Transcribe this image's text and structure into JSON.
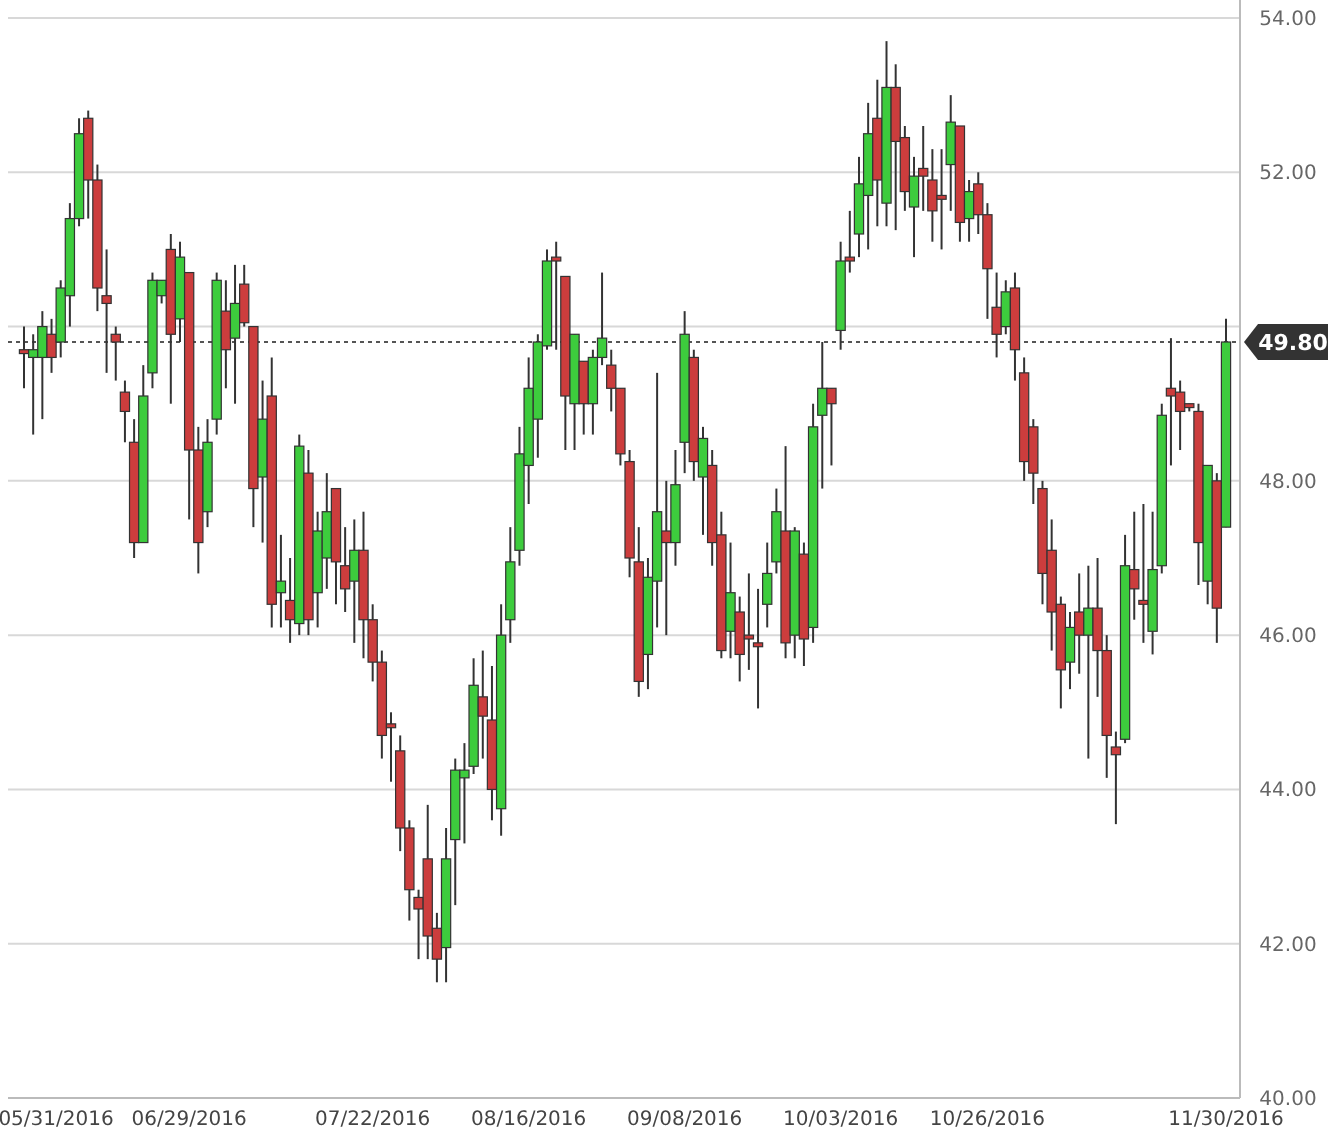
{
  "chart_data": {
    "type": "candlestick",
    "categories": [
      null,
      null,
      null,
      "05/31/2016",
      null,
      null,
      null,
      null,
      null,
      null,
      null,
      null,
      null,
      null,
      null,
      null,
      null,
      null,
      "06/29/2016",
      null,
      null,
      null,
      null,
      null,
      null,
      null,
      null,
      null,
      null,
      null,
      null,
      null,
      null,
      null,
      null,
      null,
      null,
      null,
      "07/22/2016",
      null,
      null,
      null,
      null,
      null,
      null,
      null,
      null,
      null,
      null,
      null,
      null,
      null,
      null,
      null,
      null,
      "08/16/2016",
      null,
      null,
      null,
      null,
      null,
      null,
      null,
      null,
      null,
      null,
      null,
      null,
      null,
      null,
      null,
      null,
      "09/08/2016",
      null,
      null,
      null,
      null,
      null,
      null,
      null,
      null,
      null,
      null,
      null,
      null,
      null,
      null,
      null,
      null,
      "10/03/2016",
      null,
      null,
      null,
      null,
      null,
      null,
      null,
      null,
      null,
      null,
      null,
      null,
      null,
      null,
      null,
      "10/26/2016",
      null,
      null,
      null,
      null,
      null,
      null,
      null,
      null,
      null,
      null,
      null,
      null,
      null,
      null,
      null,
      null,
      null,
      null,
      null,
      null,
      null,
      null,
      null,
      null,
      null,
      "11/30/2016"
    ],
    "ohlc": [
      [
        49.7,
        50.0,
        49.2,
        49.65
      ],
      [
        49.6,
        49.9,
        48.6,
        49.7
      ],
      [
        49.6,
        50.2,
        48.8,
        50.0
      ],
      [
        49.9,
        50.1,
        49.4,
        49.6
      ],
      [
        49.8,
        50.6,
        49.6,
        50.5
      ],
      [
        50.4,
        51.6,
        50.0,
        51.4
      ],
      [
        51.4,
        52.7,
        51.3,
        52.5
      ],
      [
        52.7,
        52.8,
        51.4,
        51.9
      ],
      [
        51.9,
        52.1,
        50.2,
        50.5
      ],
      [
        50.4,
        51.0,
        49.4,
        50.3
      ],
      [
        49.9,
        50.0,
        49.3,
        49.8
      ],
      [
        49.15,
        49.3,
        48.5,
        48.9
      ],
      [
        48.5,
        48.8,
        47.0,
        47.2
      ],
      [
        47.2,
        49.5,
        47.2,
        49.1
      ],
      [
        49.4,
        50.7,
        49.2,
        50.6
      ],
      [
        50.4,
        50.6,
        50.3,
        50.6
      ],
      [
        51.0,
        51.2,
        49.0,
        49.9
      ],
      [
        50.1,
        51.1,
        49.8,
        50.9
      ],
      [
        50.7,
        50.7,
        47.5,
        48.4
      ],
      [
        48.4,
        48.7,
        46.8,
        47.2
      ],
      [
        47.6,
        48.8,
        47.4,
        48.5
      ],
      [
        48.8,
        50.7,
        48.6,
        50.6
      ],
      [
        50.2,
        50.6,
        49.2,
        49.7
      ],
      [
        49.85,
        50.8,
        49.0,
        50.3
      ],
      [
        50.55,
        50.8,
        50.0,
        50.05
      ],
      [
        50.0,
        50.0,
        47.4,
        47.9
      ],
      [
        48.05,
        49.3,
        47.2,
        48.8
      ],
      [
        49.1,
        49.6,
        46.1,
        46.4
      ],
      [
        46.55,
        47.3,
        46.1,
        46.7
      ],
      [
        46.45,
        47.0,
        45.9,
        46.2
      ],
      [
        46.15,
        48.6,
        46.0,
        48.45
      ],
      [
        48.1,
        48.4,
        46.0,
        46.2
      ],
      [
        46.55,
        47.6,
        46.1,
        47.35
      ],
      [
        47.0,
        48.1,
        46.6,
        47.6
      ],
      [
        47.9,
        47.9,
        46.4,
        46.95
      ],
      [
        46.9,
        47.4,
        46.3,
        46.6
      ],
      [
        46.7,
        47.5,
        45.9,
        47.1
      ],
      [
        47.1,
        47.6,
        45.7,
        46.2
      ],
      [
        46.2,
        46.4,
        45.4,
        45.65
      ],
      [
        45.65,
        45.8,
        44.4,
        44.7
      ],
      [
        44.85,
        45.0,
        44.1,
        44.8
      ],
      [
        44.5,
        44.7,
        43.2,
        43.5
      ],
      [
        43.5,
        43.6,
        42.3,
        42.7
      ],
      [
        42.6,
        42.7,
        41.8,
        42.45
      ],
      [
        43.1,
        43.8,
        41.8,
        42.1
      ],
      [
        42.2,
        42.4,
        41.5,
        41.8
      ],
      [
        41.95,
        43.5,
        41.5,
        43.1
      ],
      [
        43.35,
        44.4,
        42.5,
        44.25
      ],
      [
        44.15,
        44.6,
        43.3,
        44.25
      ],
      [
        44.3,
        45.7,
        44.2,
        45.35
      ],
      [
        45.2,
        45.8,
        44.4,
        44.95
      ],
      [
        44.9,
        45.6,
        43.6,
        44.0
      ],
      [
        43.75,
        46.4,
        43.4,
        46.0
      ],
      [
        46.2,
        47.4,
        45.9,
        46.95
      ],
      [
        47.1,
        48.7,
        46.9,
        48.35
      ],
      [
        48.2,
        49.6,
        47.7,
        49.2
      ],
      [
        48.8,
        49.9,
        48.3,
        49.8
      ],
      [
        49.75,
        51.0,
        49.7,
        50.85
      ],
      [
        50.9,
        51.1,
        49.7,
        50.85
      ],
      [
        50.65,
        50.65,
        48.4,
        49.1
      ],
      [
        49.0,
        49.9,
        48.4,
        49.9
      ],
      [
        49.55,
        49.55,
        48.6,
        49.0
      ],
      [
        49.0,
        49.7,
        48.6,
        49.6
      ],
      [
        49.6,
        50.7,
        49.5,
        49.85
      ],
      [
        49.5,
        49.7,
        48.9,
        49.2
      ],
      [
        49.2,
        49.2,
        48.2,
        48.35
      ],
      [
        48.25,
        48.4,
        46.75,
        47.0
      ],
      [
        46.95,
        47.4,
        45.2,
        45.4
      ],
      [
        45.75,
        47.0,
        45.3,
        46.75
      ],
      [
        46.7,
        49.4,
        46.1,
        47.6
      ],
      [
        47.35,
        48.0,
        46.0,
        47.2
      ],
      [
        47.2,
        48.4,
        46.9,
        47.95
      ],
      [
        48.5,
        50.2,
        48.1,
        49.9
      ],
      [
        49.6,
        49.7,
        48.0,
        48.25
      ],
      [
        48.05,
        48.7,
        47.3,
        48.55
      ],
      [
        48.2,
        48.4,
        46.9,
        47.2
      ],
      [
        47.3,
        47.6,
        45.7,
        45.8
      ],
      [
        46.05,
        47.2,
        45.7,
        46.55
      ],
      [
        46.3,
        46.5,
        45.4,
        45.75
      ],
      [
        46.0,
        46.8,
        45.55,
        45.95
      ],
      [
        45.9,
        46.6,
        45.05,
        45.85
      ],
      [
        46.4,
        47.2,
        46.1,
        46.8
      ],
      [
        46.95,
        47.9,
        46.8,
        47.6
      ],
      [
        47.35,
        48.45,
        45.7,
        45.9
      ],
      [
        46.0,
        47.4,
        45.7,
        47.35
      ],
      [
        47.05,
        47.2,
        45.6,
        45.95
      ],
      [
        46.1,
        49.0,
        45.9,
        48.7
      ],
      [
        48.85,
        49.8,
        47.9,
        49.2
      ],
      [
        49.2,
        49.2,
        48.2,
        49.0
      ],
      [
        49.95,
        51.1,
        49.7,
        50.85
      ],
      [
        50.9,
        51.5,
        50.7,
        50.85
      ],
      [
        51.2,
        52.2,
        50.9,
        51.85
      ],
      [
        51.7,
        52.9,
        51.0,
        52.5
      ],
      [
        52.7,
        53.2,
        51.3,
        51.9
      ],
      [
        51.6,
        53.7,
        51.3,
        53.1
      ],
      [
        53.1,
        53.4,
        51.25,
        52.4
      ],
      [
        52.45,
        52.6,
        51.5,
        51.75
      ],
      [
        51.55,
        52.2,
        50.9,
        51.95
      ],
      [
        52.05,
        52.6,
        51.5,
        51.95
      ],
      [
        51.9,
        52.3,
        51.1,
        51.5
      ],
      [
        51.7,
        52.3,
        51.0,
        51.65
      ],
      [
        52.1,
        53.0,
        51.5,
        52.65
      ],
      [
        52.6,
        52.6,
        51.1,
        51.35
      ],
      [
        51.4,
        51.9,
        51.1,
        51.75
      ],
      [
        51.85,
        52.0,
        51.2,
        51.45
      ],
      [
        51.45,
        51.6,
        50.1,
        50.75
      ],
      [
        50.25,
        50.7,
        49.6,
        49.9
      ],
      [
        50.0,
        50.6,
        49.9,
        50.45
      ],
      [
        50.5,
        50.7,
        49.3,
        49.7
      ],
      [
        49.4,
        49.6,
        48.0,
        48.25
      ],
      [
        48.7,
        48.8,
        47.7,
        48.1
      ],
      [
        47.9,
        48.0,
        46.4,
        46.8
      ],
      [
        47.1,
        47.5,
        45.8,
        46.3
      ],
      [
        46.4,
        46.5,
        45.05,
        45.55
      ],
      [
        45.65,
        46.3,
        45.3,
        46.1
      ],
      [
        46.3,
        46.8,
        45.5,
        46.0
      ],
      [
        46.0,
        46.9,
        44.4,
        46.35
      ],
      [
        46.35,
        47.0,
        45.2,
        45.8
      ],
      [
        45.8,
        46.0,
        44.15,
        44.7
      ],
      [
        44.55,
        44.75,
        43.55,
        44.45
      ],
      [
        44.65,
        47.3,
        44.6,
        46.9
      ],
      [
        46.85,
        47.6,
        46.2,
        46.6
      ],
      [
        46.45,
        47.7,
        45.9,
        46.4
      ],
      [
        46.05,
        47.6,
        45.75,
        46.85
      ],
      [
        46.9,
        49.0,
        46.8,
        48.85
      ],
      [
        49.2,
        49.85,
        48.2,
        49.1
      ],
      [
        49.15,
        49.3,
        48.4,
        48.9
      ],
      [
        49.0,
        49.0,
        48.9,
        48.95
      ],
      [
        48.9,
        49.0,
        46.65,
        47.2
      ],
      [
        46.7,
        48.2,
        46.4,
        48.2
      ],
      [
        48.0,
        48.1,
        45.9,
        46.35
      ],
      [
        47.4,
        50.1,
        47.4,
        49.8
      ]
    ],
    "colors": [
      "#cc3d3d",
      "#3dcc3d",
      "#3dcc3d",
      "#cc3d3d",
      "#3dcc3d",
      "#3dcc3d",
      "#3dcc3d",
      "#cc3d3d",
      "#cc3d3d",
      "#cc3d3d",
      "#cc3d3d",
      "#cc3d3d",
      "#cc3d3d",
      "#3dcc3d",
      "#3dcc3d",
      "#3dcc3d",
      "#cc3d3d",
      "#3dcc3d",
      "#cc3d3d",
      "#cc3d3d",
      "#3dcc3d",
      "#3dcc3d",
      "#cc3d3d",
      "#3dcc3d",
      "#cc3d3d",
      "#cc3d3d",
      "#3dcc3d",
      "#cc3d3d",
      "#3dcc3d",
      "#cc3d3d",
      "#3dcc3d",
      "#cc3d3d",
      "#3dcc3d",
      "#3dcc3d",
      "#cc3d3d",
      "#cc3d3d",
      "#3dcc3d",
      "#cc3d3d",
      "#cc3d3d",
      "#cc3d3d",
      "#cc3d3d",
      "#cc3d3d",
      "#cc3d3d",
      "#cc3d3d",
      "#cc3d3d",
      "#cc3d3d",
      "#3dcc3d",
      "#3dcc3d",
      "#3dcc3d",
      "#3dcc3d",
      "#cc3d3d",
      "#cc3d3d",
      "#3dcc3d",
      "#3dcc3d",
      "#3dcc3d",
      "#3dcc3d",
      "#3dcc3d",
      "#3dcc3d",
      "#cc3d3d",
      "#cc3d3d",
      "#3dcc3d",
      "#cc3d3d",
      "#3dcc3d",
      "#3dcc3d",
      "#cc3d3d",
      "#cc3d3d",
      "#cc3d3d",
      "#cc3d3d",
      "#3dcc3d",
      "#3dcc3d",
      "#cc3d3d",
      "#3dcc3d",
      "#3dcc3d",
      "#cc3d3d",
      "#3dcc3d",
      "#cc3d3d",
      "#cc3d3d",
      "#3dcc3d",
      "#cc3d3d",
      "#cc3d3d",
      "#cc3d3d",
      "#3dcc3d",
      "#3dcc3d",
      "#cc3d3d",
      "#3dcc3d",
      "#cc3d3d",
      "#3dcc3d",
      "#3dcc3d",
      "#cc3d3d",
      "#3dcc3d",
      "#cc3d3d",
      "#3dcc3d",
      "#3dcc3d",
      "#cc3d3d",
      "#3dcc3d",
      "#cc3d3d",
      "#cc3d3d",
      "#3dcc3d",
      "#cc3d3d",
      "#cc3d3d",
      "#cc3d3d",
      "#3dcc3d",
      "#cc3d3d",
      "#3dcc3d",
      "#cc3d3d",
      "#cc3d3d",
      "#cc3d3d",
      "#3dcc3d",
      "#cc3d3d",
      "#cc3d3d",
      "#cc3d3d",
      "#cc3d3d",
      "#cc3d3d",
      "#cc3d3d",
      "#3dcc3d",
      "#cc3d3d",
      "#3dcc3d",
      "#cc3d3d",
      "#cc3d3d",
      "#cc3d3d",
      "#3dcc3d",
      "#cc3d3d",
      "#cc3d3d",
      "#3dcc3d",
      "#3dcc3d",
      "#cc3d3d",
      "#cc3d3d",
      "#cc3d3d",
      "#cc3d3d",
      "#3dcc3d",
      "#cc3d3d",
      "#3dcc3d"
    ],
    "ylim": [
      40,
      54
    ],
    "yticks": [
      {
        "value": 40,
        "label": "40.00"
      },
      {
        "value": 42,
        "label": "42.00"
      },
      {
        "value": 44,
        "label": "44.00"
      },
      {
        "value": 46,
        "label": "46.00"
      },
      {
        "value": 48,
        "label": "48.00"
      },
      {
        "value": 50,
        "label": null
      },
      {
        "value": 52,
        "label": "52.00"
      },
      {
        "value": 54,
        "label": "54.00"
      }
    ],
    "grid": "y",
    "ref_lines": [
      {
        "axis": "y",
        "value": 49.8,
        "label": "49.80",
        "line_style": "dotted",
        "color": "#555555"
      }
    ]
  }
}
